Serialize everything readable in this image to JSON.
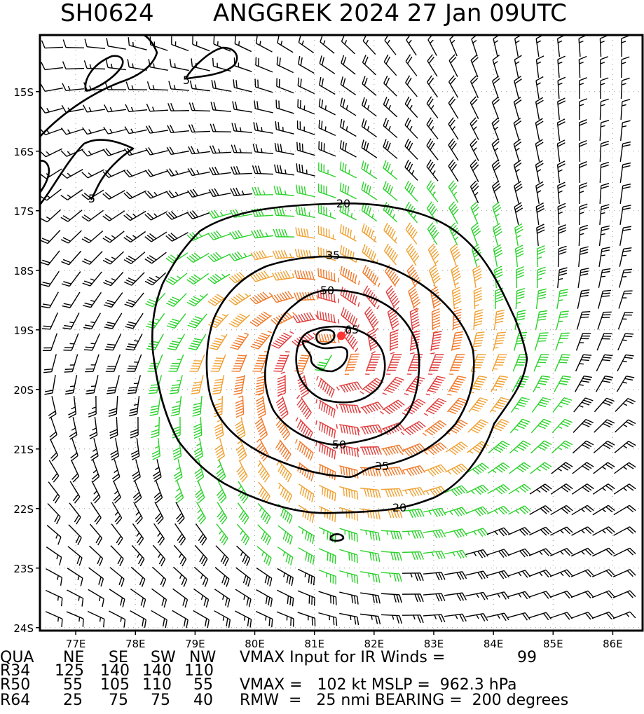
{
  "chart_data": {
    "type": "wind-barb-contour",
    "title": {
      "storm_id": "SH0624",
      "storm_info": "ANGGREK 2024 27 Jan 09UTC"
    },
    "lat_ticks": [
      "15S",
      "16S",
      "17S",
      "18S",
      "19S",
      "20S",
      "21S",
      "22S",
      "23S",
      "24S"
    ],
    "lon_ticks": [
      "77E",
      "78E",
      "79E",
      "80E",
      "81E",
      "82E",
      "83E",
      "84E",
      "85E",
      "86E"
    ],
    "lat_range": [
      -24.05,
      -14.05
    ],
    "lon_range": [
      76.4,
      86.5
    ],
    "storm_center": {
      "lat": -19.1,
      "lon": 81.45
    },
    "eye_bearing_deg": 200,
    "contour_labels": [
      "5",
      "5",
      "20",
      "20",
      "35",
      "35",
      "50",
      "50",
      "65"
    ],
    "wind_color_bands": [
      {
        "min_kt": 0,
        "max_kt": 34,
        "color": "#000000"
      },
      {
        "min_kt": 34,
        "max_kt": 50,
        "color": "#2ad22a"
      },
      {
        "min_kt": 50,
        "max_kt": 64,
        "color": "#f0a030"
      },
      {
        "min_kt": 64,
        "max_kt": 80,
        "color": "#f07828"
      },
      {
        "min_kt": 80,
        "max_kt": 999,
        "color": "#e03c3c"
      }
    ]
  },
  "footer": {
    "row1": {
      "label": "QUA",
      "ne": "NE",
      "se": "SE",
      "sw": "SW",
      "nw": "NW",
      "text": "VMAX Input for IR Winds =",
      "value": "99"
    },
    "row2": {
      "label": "R34",
      "ne": "125",
      "se": "140",
      "sw": "140",
      "nw": "110",
      "text": "",
      "value": ""
    },
    "row3": {
      "label": "R50",
      "ne": "55",
      "se": "105",
      "sw": "110",
      "nw": "55",
      "text": "VMAX =   102 kt MSLP =  962.3 hPa",
      "value": ""
    },
    "row4": {
      "label": "R64",
      "ne": "25",
      "se": "75",
      "sw": "75",
      "nw": "40",
      "text": "RMW  =   25 nmi BEARING =  200 degrees",
      "value": ""
    }
  },
  "colors": {
    "frame": "#000000",
    "grid": "#999999",
    "center_dot": "#ff3333"
  }
}
